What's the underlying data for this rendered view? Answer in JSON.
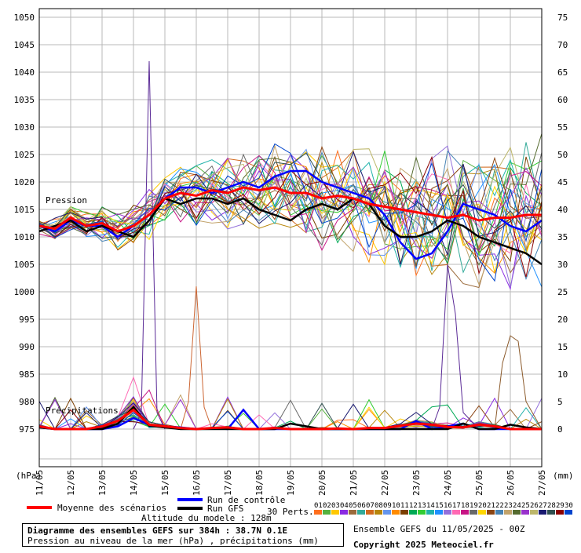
{
  "chart_data": {
    "type": "line",
    "title": "Diagramme des ensembles GEFS sur 384h : 38.7N 0.1E",
    "subtitle": "Pression au niveau de la mer (hPa) , précipitations (mm)",
    "left_axis_unit": "(hPa)",
    "right_axis_unit": "(mm)",
    "left_axis_ticks": [
      1050,
      1045,
      1040,
      1035,
      1030,
      1025,
      1020,
      1015,
      1010,
      1005,
      1000,
      995,
      990,
      985,
      980,
      975
    ],
    "right_axis_ticks": [
      75,
      70,
      65,
      60,
      55,
      50,
      45,
      40,
      35,
      30,
      25,
      20,
      15,
      10,
      5,
      0
    ],
    "ylim_pressure": [
      975,
      1050
    ],
    "ylim_precip": [
      0,
      75
    ],
    "x_tick_labels": [
      "11/05",
      "12/05",
      "13/05",
      "14/05",
      "15/05",
      "16/05",
      "17/05",
      "18/05",
      "19/05",
      "20/05",
      "21/05",
      "22/05",
      "23/05",
      "24/05",
      "25/05",
      "26/05",
      "27/05"
    ],
    "x_unit": "days since 11/05 00Z (6h steps)",
    "pressure_label": "Pression",
    "precip_label": "Précipitations",
    "grid": true,
    "series": [
      {
        "name": "Moyenne des scénarios",
        "color": "#ff0000",
        "x": [
          0,
          0.5,
          1,
          1.5,
          2,
          2.5,
          3,
          3.5,
          4,
          4.5,
          5,
          5.5,
          6,
          6.5,
          7,
          7.5,
          8,
          8.5,
          9,
          9.5,
          10,
          10.5,
          11,
          11.5,
          12,
          12.5,
          13,
          13.5,
          14,
          14.5,
          15,
          15.5,
          16
        ],
        "pressure": [
          1012,
          1011.5,
          1013.5,
          1012,
          1012.5,
          1011,
          1012,
          1014,
          1017,
          1018,
          1017.5,
          1018.5,
          1018,
          1019,
          1018.5,
          1019,
          1018,
          1018,
          1017,
          1017.5,
          1017,
          1016,
          1015.5,
          1015,
          1014.5,
          1014,
          1013.5,
          1014,
          1013,
          1013.5,
          1013.5,
          1014,
          1014
        ],
        "precip": [
          0.5,
          0,
          0,
          0,
          0.5,
          1.5,
          3.5,
          0.8,
          0.5,
          0.2,
          0,
          0.2,
          0.3,
          0,
          0,
          0.2,
          0,
          0,
          0,
          0.1,
          0,
          0.2,
          0.2,
          0.6,
          1,
          0.8,
          0.4,
          0.3,
          0.8,
          0.5,
          0,
          0,
          0
        ]
      },
      {
        "name": "Run de contrôle",
        "color": "#0000ff",
        "x": [
          0,
          0.5,
          1,
          1.5,
          2,
          2.5,
          3,
          3.5,
          4,
          4.5,
          5,
          5.5,
          6,
          6.5,
          7,
          7.5,
          8,
          8.5,
          9,
          9.5,
          10,
          10.5,
          11,
          11.5,
          12,
          12.5,
          13,
          13.5,
          14,
          14.5,
          15,
          15.5,
          16
        ],
        "pressure": [
          1012,
          1011,
          1013,
          1012,
          1012,
          1010,
          1012,
          1014,
          1017,
          1019,
          1019,
          1018,
          1019,
          1020,
          1019,
          1021,
          1022,
          1022,
          1020,
          1019,
          1018,
          1017,
          1014,
          1009,
          1006,
          1007,
          1011,
          1016,
          1015,
          1014,
          1012,
          1011,
          1013
        ],
        "precip": [
          0.3,
          0,
          0,
          0,
          0,
          0.5,
          2,
          0.8,
          0.5,
          0.3,
          0,
          0.2,
          0,
          3.5,
          0,
          0,
          0,
          0,
          0,
          0,
          0,
          0,
          0,
          0,
          1.5,
          0,
          0.5,
          1,
          0,
          0,
          0,
          0,
          0
        ]
      },
      {
        "name": "Run GFS",
        "color": "#000000",
        "x": [
          0,
          0.5,
          1,
          1.5,
          2,
          2.5,
          3,
          3.5,
          4,
          4.5,
          5,
          5.5,
          6,
          6.5,
          7,
          7.5,
          8,
          8.5,
          9,
          9.5,
          10,
          10.5,
          11,
          11.5,
          12,
          12.5,
          13,
          13.5,
          14,
          14.5,
          15,
          15.5,
          16
        ],
        "pressure": [
          1011,
          1012,
          1013,
          1011,
          1012,
          1011,
          1010,
          1013,
          1017,
          1016,
          1017,
          1017,
          1016,
          1017,
          1015,
          1014,
          1013,
          1015,
          1016,
          1015,
          1017,
          1016,
          1012,
          1010,
          1010,
          1011,
          1013,
          1012,
          1010,
          1009,
          1008,
          1007,
          1005
        ],
        "precip": [
          0.3,
          0,
          0,
          0,
          0,
          1,
          4,
          0.6,
          0.3,
          0,
          0,
          0,
          0,
          0,
          0,
          0,
          1,
          0.5,
          0,
          0,
          0,
          0,
          0,
          0,
          0,
          0,
          0,
          1,
          0,
          0,
          0.8,
          0.3,
          0
        ]
      }
    ],
    "legend": {
      "mean_label": "Moyenne des scénarios",
      "control_label": "Run de contrôle",
      "gfs_label": "Run GFS",
      "perts_label": "30 Perts.",
      "pert_numbers": [
        "01",
        "02",
        "03",
        "04",
        "05",
        "06",
        "07",
        "08",
        "09",
        "10",
        "11",
        "12",
        "13",
        "14",
        "15",
        "16",
        "17",
        "18",
        "19",
        "20",
        "21",
        "22",
        "23",
        "24",
        "25",
        "26",
        "27",
        "28",
        "29",
        "30"
      ],
      "pert_colors": [
        "#ff6f1e",
        "#56b13f",
        "#ffc800",
        "#8a2be2",
        "#9b6b3c",
        "#33aa99",
        "#d2691e",
        "#b8860b",
        "#6495ed",
        "#ff8c00",
        "#7b3f00",
        "#00aa55",
        "#32cd32",
        "#20b2aa",
        "#1e90ff",
        "#9370db",
        "#ff69b4",
        "#c71585",
        "#696969",
        "#ffd700",
        "#8b4513",
        "#4682b4",
        "#c2a36b",
        "#556b2f",
        "#9932cc",
        "#bdb76b",
        "#191970",
        "#2f4f4f",
        "#8b0000",
        "#0044cc"
      ]
    }
  },
  "footer": {
    "altitude": "Altitude du modele : 128m",
    "ensemble": "Ensemble GEFS du 11/05/2025 - 00Z",
    "copyright": "Copyright 2025 Meteociel.fr"
  }
}
